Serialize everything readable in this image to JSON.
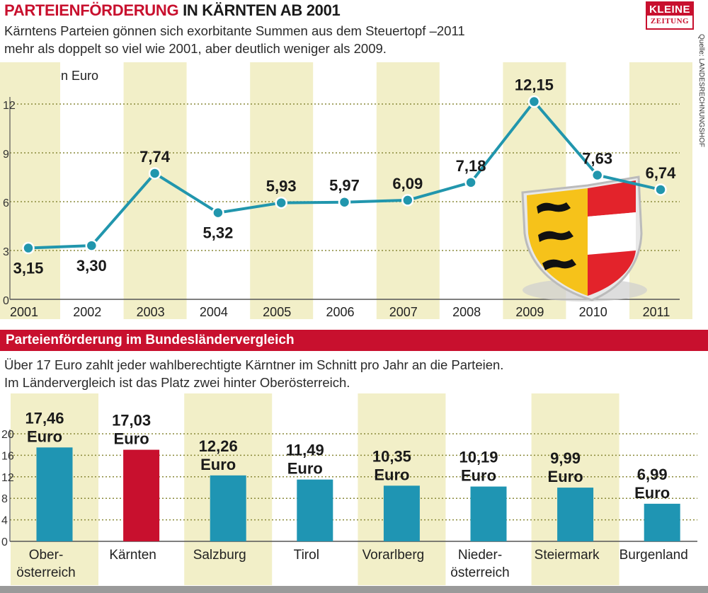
{
  "header": {
    "title_highlight": "PARTEIENFÖRDERUNG",
    "title_rest": " IN KÄRNTEN AB 2001",
    "subtitle_line1": "Kärntens Parteien gönnen sich exorbitante Summen aus dem Steuertopf –2011",
    "subtitle_line2": "mehr als doppelt so viel wie 2001, aber deutlich weniger als 2009.",
    "logo_top": "KLEINE",
    "logo_bottom": "ZEITUNG",
    "source": "Quelle: LANDESRECHNUNGSHOF"
  },
  "colors": {
    "accent_red": "#c8102e",
    "line_teal": "#2196ad",
    "bar_teal": "#1f95b3",
    "band_yellow": "#f2efc8"
  },
  "chart_data": [
    {
      "type": "line",
      "ylabel": "in Millionen Euro",
      "x": [
        "2001",
        "2002",
        "2003",
        "2004",
        "2005",
        "2006",
        "2007",
        "2008",
        "2009",
        "2010",
        "2011"
      ],
      "series": [
        {
          "values": [
            3.15,
            3.3,
            7.74,
            5.32,
            5.93,
            5.97,
            6.09,
            7.18,
            12.15,
            7.63,
            6.74
          ],
          "labels": [
            "3,15",
            "3,30",
            "7,74",
            "5,32",
            "5,93",
            "5,97",
            "6,09",
            "7,18",
            "12,15",
            "7,63",
            "6,74"
          ]
        }
      ],
      "yticks": [
        "0",
        "3",
        "6",
        "9",
        "12"
      ],
      "ylim": [
        0,
        13
      ],
      "grid": "dotted horizontal",
      "emblem": "Kärnten coat of arms"
    },
    {
      "type": "bar",
      "title": "Parteienförderung im Bundesländervergleich",
      "description_line1": "Über 17 Euro zahlt jeder wahlberechtigte Kärntner im Schnitt pro Jahr an die Parteien.",
      "description_line2": "Im Ländervergleich ist das Platz zwei hinter Oberösterreich.",
      "categories": [
        [
          "Ober-",
          "österreich"
        ],
        [
          "Kärnten"
        ],
        [
          "Salzburg"
        ],
        [
          "Tirol"
        ],
        [
          "Vorarlberg"
        ],
        [
          "Nieder-",
          "österreich"
        ],
        [
          "Steiermark"
        ],
        [
          "Burgenland"
        ]
      ],
      "values": [
        17.46,
        17.03,
        12.26,
        11.49,
        10.35,
        10.19,
        9.99,
        6.99
      ],
      "labels": [
        "17,46",
        "17,03",
        "12,26",
        "11,49",
        "10,35",
        "10,19",
        "9,99",
        "6,99"
      ],
      "unit": "Euro",
      "highlight_index": 1,
      "yticks": [
        "0",
        "4",
        "8",
        "12",
        "16",
        "20"
      ],
      "ylim": [
        0,
        20
      ],
      "grid": "dotted horizontal"
    }
  ]
}
